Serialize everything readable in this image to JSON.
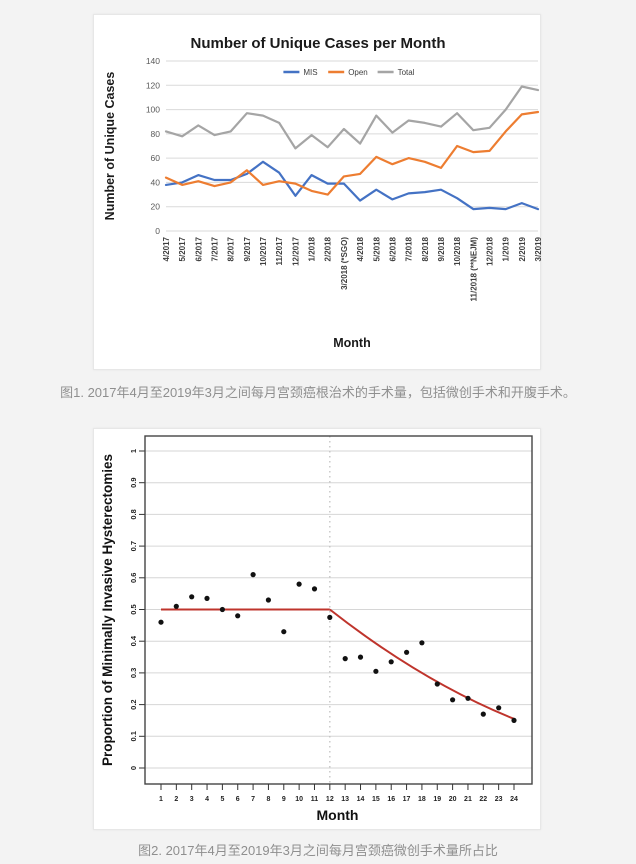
{
  "caption1": "图1. 2017年4月至2019年3月之间每月宫颈癌根治术的手术量，包括微创手术和开腹手术。",
  "caption2": "图2. 2017年4月至2019年3月之间每月宫颈癌微创手术量所占比",
  "colors": {
    "mis_blue": "#4472C4",
    "open_orange": "#ED7D31",
    "total_gray": "#A5A5A5",
    "gridline": "#dadada",
    "axis_text": "#595959",
    "category_text": "#3f3f3f",
    "trend_red": "#bf342c",
    "dashed_ref": "#bdbdbd",
    "scatter_point": "#111111",
    "box_border": "#444444"
  },
  "chart_data": [
    {
      "type": "line",
      "title": "Number of Unique Cases per Month",
      "xlabel": "Month",
      "ylabel": "Number of Unique Cases",
      "ylim": [
        0,
        140
      ],
      "yticks": [
        0,
        20,
        40,
        60,
        80,
        100,
        120,
        140
      ],
      "grid": true,
      "legend_position": "top-center",
      "categories": [
        "4/2017",
        "5/2017",
        "6/2017",
        "7/2017",
        "8/2017",
        "9/2017",
        "10/2017",
        "11/2017",
        "12/2017",
        "1/2018",
        "2/2018",
        "3/2018 (*SGO)",
        "4/2018",
        "5/2018",
        "6/2018",
        "7/2018",
        "8/2018",
        "9/2018",
        "10/2018",
        "11/2018 (**NEJM)",
        "12/2018",
        "1/2019",
        "2/2019",
        "3/2019"
      ],
      "series": [
        {
          "name": "MIS",
          "color": "#4472C4",
          "values": [
            38,
            40,
            46,
            42,
            42,
            47,
            57,
            48,
            29,
            46,
            39,
            39,
            25,
            34,
            26,
            31,
            32,
            34,
            27,
            18,
            19,
            18,
            23,
            18
          ]
        },
        {
          "name": "Open",
          "color": "#ED7D31",
          "values": [
            44,
            38,
            41,
            37,
            40,
            50,
            38,
            41,
            39,
            33,
            30,
            45,
            47,
            61,
            55,
            60,
            57,
            52,
            70,
            65,
            66,
            82,
            96,
            98
          ]
        },
        {
          "name": "Total",
          "color": "#A5A5A5",
          "values": [
            82,
            78,
            87,
            79,
            82,
            97,
            95,
            89,
            68,
            79,
            69,
            84,
            72,
            95,
            81,
            91,
            89,
            86,
            97,
            83,
            85,
            100,
            119,
            116
          ]
        }
      ]
    },
    {
      "type": "scatter",
      "title": "",
      "xlabel": "Month",
      "ylabel": "Proportion of Minimally Invasive Hysterectomies",
      "xlim": [
        1,
        24
      ],
      "ylim": [
        0,
        1
      ],
      "xticks": [
        1,
        2,
        3,
        4,
        5,
        6,
        7,
        8,
        9,
        10,
        11,
        12,
        13,
        14,
        15,
        16,
        17,
        18,
        19,
        20,
        21,
        22,
        23,
        24
      ],
      "ytick_labels": [
        "0",
        "0.1",
        "0.2",
        "0.3",
        "0.4",
        "0.5",
        "0.6",
        "0.7",
        "0.8",
        "0.9",
        "1"
      ],
      "grid": true,
      "x": [
        1,
        2,
        3,
        4,
        5,
        6,
        7,
        8,
        9,
        10,
        11,
        12,
        13,
        14,
        15,
        16,
        17,
        18,
        19,
        20,
        21,
        22,
        23,
        24
      ],
      "y": [
        0.46,
        0.51,
        0.54,
        0.535,
        0.5,
        0.48,
        0.61,
        0.53,
        0.43,
        0.58,
        0.565,
        0.475,
        0.345,
        0.35,
        0.305,
        0.335,
        0.365,
        0.395,
        0.265,
        0.215,
        0.22,
        0.17,
        0.19,
        0.15
      ],
      "trend_flat": {
        "x1": 1,
        "x2": 12,
        "y": 0.5
      },
      "trend_decline": {
        "x1": 12,
        "y1": 0.5,
        "ctrl_x": 18,
        "ctrl_y": 0.272,
        "x2": 24,
        "y2": 0.155
      },
      "reference_vline": {
        "x": 12,
        "style": "dotted"
      }
    }
  ]
}
